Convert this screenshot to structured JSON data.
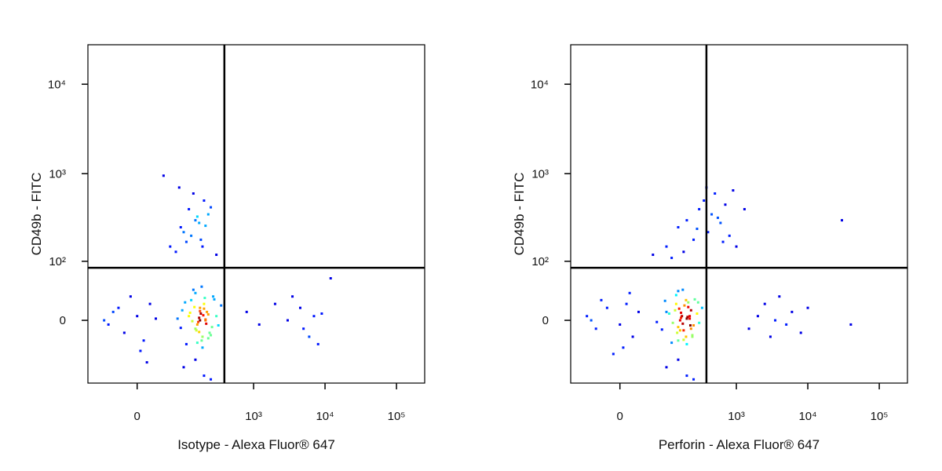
{
  "chart_data": [
    {
      "type": "scatter",
      "xlabel": "Isotype - Alexa Fluor® 647",
      "ylabel": "CD49b - FITC",
      "xscale": "asinh",
      "xcofactor": 47,
      "yscale": "asinh",
      "ycofactor": 46,
      "xlim": [
        -110,
        248000
      ],
      "ylim": [
        -111,
        27600
      ],
      "xticks": [
        0,
        {
          "value": 1000,
          "label": "10³"
        },
        {
          "value": 10000,
          "label": "10⁴"
        },
        {
          "value": 100000,
          "label": "10⁵"
        }
      ],
      "yticks": [
        0,
        {
          "value": 100,
          "label": "10²"
        },
        {
          "value": 1000,
          "label": "10³"
        },
        {
          "value": 10000,
          "label": "10⁴"
        }
      ],
      "quadrant_x": 389,
      "quadrant_y": 83,
      "colormap": "jet",
      "x": [
        120,
        150,
        180,
        210,
        175,
        160,
        200,
        240,
        130,
        190,
        170,
        220,
        260,
        150,
        185,
        95,
        110,
        300,
        350,
        140,
        165,
        205,
        230,
        175,
        195,
        155,
        125,
        80,
        270,
        190,
        215,
        145,
        175,
        250,
        320,
        105,
        185,
        160,
        200,
        135,
        230,
        170,
        280,
        90,
        210,
        60,
        90,
        120,
        150,
        180,
        200,
        230,
        100,
        140,
        170,
        75,
        110,
        210,
        250,
        130,
        160,
        190,
        85,
        300,
        45,
        -60,
        -40,
        -20,
        0,
        10,
        20,
        -50,
        -30,
        5,
        30,
        -10,
        15,
        800,
        1200,
        2000,
        3000,
        4500,
        5000,
        6000,
        7000,
        8000,
        9000,
        12000,
        3500,
        100,
        200,
        150,
        250
      ],
      "y": [
        5,
        -10,
        8,
        0,
        15,
        -5,
        20,
        -15,
        25,
        -20,
        3,
        10,
        -8,
        35,
        -25,
        12,
        -30,
        5,
        18,
        40,
        -2,
        28,
        -22,
        0,
        6,
        -12,
        9,
        2,
        30,
        -35,
        -4,
        16,
        11,
        -18,
        -6,
        22,
        45,
        -28,
        14,
        -1,
        7,
        -14,
        26,
        -9,
        1,
        150,
        250,
        400,
        300,
        180,
        500,
        350,
        220,
        600,
        280,
        130,
        170,
        260,
        420,
        200,
        330,
        150,
        700,
        120,
        950,
        0,
        10,
        -15,
        5,
        -25,
        20,
        -5,
        15,
        -40,
        2,
        30,
        -60,
        10,
        -5,
        20,
        0,
        15,
        -10,
        -20,
        5,
        -30,
        8,
        60,
        30,
        -70,
        -90,
        -55,
        -100
      ]
    },
    {
      "type": "scatter",
      "xlabel": "Perforin - Alexa Fluor® 647",
      "ylabel": "CD49b - FITC",
      "xscale": "asinh",
      "xcofactor": 47,
      "yscale": "asinh",
      "ycofactor": 46,
      "xlim": [
        -110,
        248000
      ],
      "ylim": [
        -111,
        27600
      ],
      "xticks": [
        0,
        {
          "value": 1000,
          "label": "10³"
        },
        {
          "value": 10000,
          "label": "10⁴"
        },
        {
          "value": 100000,
          "label": "10⁵"
        }
      ],
      "yticks": [
        0,
        {
          "value": 100,
          "label": "10²"
        },
        {
          "value": 1000,
          "label": "10³"
        },
        {
          "value": 10000,
          "label": "10⁴"
        }
      ],
      "quadrant_x": 380,
      "quadrant_y": 83,
      "colormap": "jet",
      "x": [
        110,
        160,
        170,
        220,
        185,
        150,
        210,
        230,
        140,
        180,
        160,
        230,
        250,
        140,
        195,
        100,
        120,
        280,
        330,
        150,
        175,
        195,
        240,
        165,
        205,
        145,
        135,
        70,
        260,
        200,
        225,
        155,
        165,
        240,
        300,
        95,
        175,
        150,
        210,
        125,
        220,
        180,
        290,
        85,
        200,
        60,
        100,
        150,
        200,
        250,
        300,
        350,
        400,
        450,
        500,
        600,
        700,
        800,
        900,
        1000,
        120,
        180,
        280,
        380,
        550,
        650,
        1300,
        -60,
        -40,
        -20,
        0,
        10,
        20,
        -50,
        -30,
        5,
        30,
        -10,
        15,
        1500,
        2000,
        2500,
        3000,
        3500,
        4000,
        5000,
        6000,
        8000,
        10000,
        30000,
        40000,
        100,
        200,
        150,
        250
      ],
      "y": [
        8,
        -12,
        5,
        2,
        18,
        -8,
        22,
        -10,
        20,
        -24,
        0,
        12,
        -6,
        32,
        -20,
        10,
        -28,
        8,
        15,
        38,
        -4,
        25,
        -18,
        3,
        4,
        -15,
        12,
        -2,
        26,
        -30,
        -6,
        14,
        9,
        -20,
        -3,
        24,
        40,
        -25,
        16,
        -3,
        5,
        -12,
        22,
        -11,
        2,
        120,
        150,
        250,
        300,
        180,
        400,
        500,
        220,
        350,
        600,
        280,
        450,
        200,
        650,
        150,
        110,
        130,
        240,
        700,
        320,
        170,
        400,
        5,
        -10,
        15,
        -5,
        20,
        -20,
        0,
        25,
        -35,
        10,
        -45,
        35,
        -10,
        5,
        20,
        -20,
        0,
        30,
        -5,
        10,
        -15,
        15,
        300,
        -5,
        -70,
        -90,
        -55,
        -100
      ]
    }
  ]
}
